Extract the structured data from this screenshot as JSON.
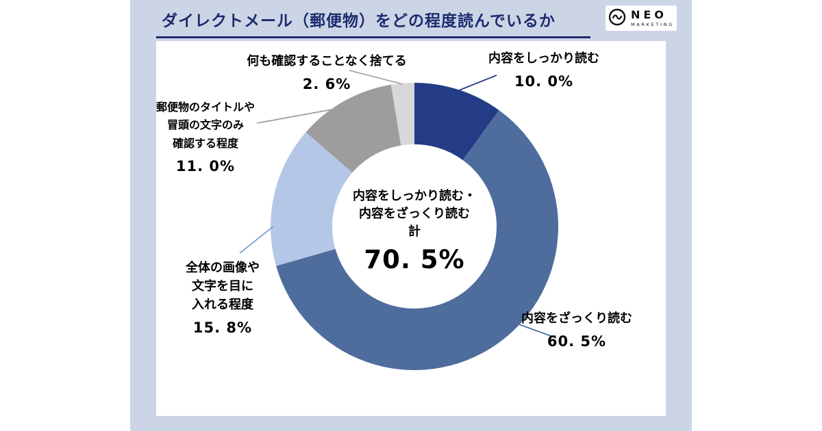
{
  "header": {
    "title": "ダイレクトメール（郵便物）をどの程度読んでいるか",
    "logo": {
      "name": "NEO",
      "subtitle": "MARKETING"
    }
  },
  "chart_data": {
    "type": "pie",
    "subtype": "donut",
    "title": "ダイレクトメール（郵便物）をどの程度読んでいるか",
    "unit": "%",
    "legend_position": "callout-labels",
    "grid": false,
    "slices": [
      {
        "label": "内容をしっかり読む",
        "label_lines": [
          "内容をしっかり読む"
        ],
        "value": 10.0,
        "display": "10. 0%",
        "color": "#233c85",
        "leader_color": "#233c85"
      },
      {
        "label": "内容をざっくり読む",
        "label_lines": [
          "内容をざっくり読む"
        ],
        "value": 60.5,
        "display": "60. 5%",
        "color": "#4e6d9d",
        "leader_color": "#4e6d9d"
      },
      {
        "label": "全体の画像や文字を目に入れる程度",
        "label_lines": [
          "全体の画像や",
          "文字を目に",
          "入れる程度"
        ],
        "value": 15.8,
        "display": "15. 8%",
        "color": "#b4c7e7",
        "leader_color": "#7e9fce"
      },
      {
        "label": "郵便物のタイトルや冒頭の文字のみ確認する程度",
        "label_lines": [
          "郵便物のタイトルや",
          "冒頭の文字のみ",
          "確認する程度"
        ],
        "value": 11.0,
        "display": "11. 0%",
        "color": "#9d9d9d",
        "leader_color": "#9d9d9d"
      },
      {
        "label": "何も確認することなく捨てる",
        "label_lines": [
          "何も確認することなく捨てる"
        ],
        "value": 2.6,
        "display": "2. 6%",
        "color": "#d8d8d8",
        "leader_color": "#a8a8a8"
      }
    ],
    "center_label": {
      "line1": "内容をしっかり読む・",
      "line2": "内容をざっくり読む",
      "line3": "計",
      "total_value": 70.5,
      "total_display": "70. 5%"
    }
  }
}
